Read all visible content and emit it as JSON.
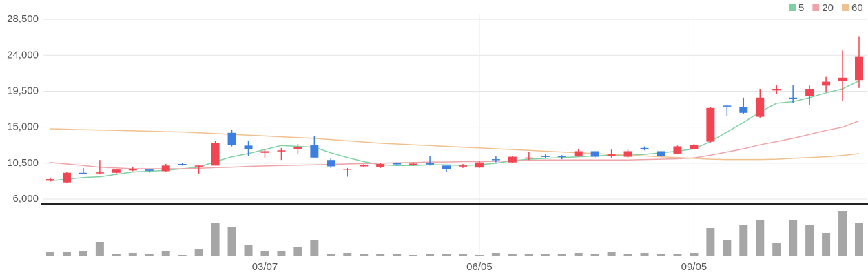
{
  "chart_data": {
    "type": "candlestick",
    "categories": [
      null,
      null,
      null,
      null,
      null,
      null,
      null,
      null,
      null,
      null,
      null,
      null,
      null,
      "03/07",
      null,
      null,
      null,
      null,
      null,
      null,
      null,
      null,
      null,
      null,
      null,
      null,
      "06/05",
      null,
      null,
      null,
      null,
      null,
      null,
      null,
      null,
      null,
      null,
      null,
      null,
      "09/05",
      null,
      null,
      null,
      null,
      null,
      null,
      null,
      null,
      null,
      null
    ],
    "open": [
      8300,
      8100,
      9300,
      9250,
      9300,
      9600,
      9700,
      9500,
      10400,
      10100,
      10200,
      14300,
      12700,
      11800,
      12000,
      12300,
      12800,
      10900,
      9700,
      10100,
      10000,
      10500,
      10300,
      10500,
      10200,
      10100,
      9950,
      11000,
      10600,
      11100,
      11400,
      11400,
      11400,
      12000,
      11400,
      11300,
      12400,
      12000,
      11700,
      12300,
      13200,
      17700,
      17500,
      16300,
      19600,
      18700,
      18900,
      20200,
      20800,
      20900
    ],
    "high": [
      8700,
      9400,
      9900,
      10900,
      9750,
      10000,
      9800,
      10400,
      10500,
      10300,
      13300,
      14700,
      13300,
      12300,
      12400,
      12900,
      13900,
      11100,
      9900,
      10400,
      10500,
      10600,
      10600,
      11400,
      10200,
      10400,
      10800,
      11400,
      11400,
      11900,
      11600,
      11500,
      12300,
      12000,
      12200,
      12200,
      12600,
      12000,
      12700,
      12900,
      17500,
      17800,
      18700,
      19800,
      20300,
      20300,
      20200,
      21300,
      24600,
      26400
    ],
    "low": [
      8200,
      8000,
      9100,
      9100,
      9200,
      9500,
      9300,
      9400,
      10200,
      9200,
      10200,
      12600,
      11400,
      11200,
      10900,
      11700,
      11200,
      9900,
      8800,
      10000,
      9900,
      10200,
      10200,
      10200,
      9400,
      9900,
      9900,
      10600,
      10500,
      10900,
      11100,
      11000,
      11300,
      11200,
      11200,
      11100,
      12100,
      11300,
      11600,
      12200,
      13100,
      16400,
      16700,
      16200,
      19200,
      18000,
      17800,
      19400,
      18300,
      19900
    ],
    "close": [
      8500,
      9300,
      9250,
      9350,
      9700,
      9800,
      9550,
      10200,
      10300,
      10200,
      13000,
      12800,
      12300,
      12000,
      12100,
      12500,
      11200,
      10100,
      9800,
      10300,
      10400,
      10350,
      10450,
      10350,
      9800,
      10200,
      10600,
      10900,
      11300,
      11200,
      11300,
      11300,
      12000,
      11300,
      11600,
      12000,
      12300,
      11400,
      12600,
      12800,
      17400,
      17600,
      16800,
      18700,
      19800,
      18600,
      19800,
      20700,
      21200,
      23800
    ],
    "volume": [
      5,
      5,
      6,
      19,
      3,
      4,
      3,
      6,
      1,
      9,
      48,
      41,
      15,
      6,
      6,
      12,
      22,
      3,
      4,
      2,
      3,
      2,
      1,
      3,
      2,
      2,
      1,
      4,
      3,
      3,
      2,
      2,
      4,
      3,
      5,
      3,
      4,
      3,
      3,
      4,
      40,
      22,
      45,
      52,
      18,
      51,
      45,
      33,
      65,
      48
    ],
    "series": [
      {
        "name": "5",
        "color": "#7fd1a4",
        "values": [
          8300,
          8500,
          8700,
          8800,
          9100,
          9400,
          9500,
          9600,
          9800,
          10000,
          10700,
          11300,
          11700,
          12200,
          12700,
          12600,
          12500,
          11800,
          11200,
          10700,
          10300,
          10200,
          10200,
          10300,
          10300,
          10200,
          10300,
          10500,
          10800,
          11000,
          11100,
          11200,
          11300,
          11400,
          11500,
          11500,
          11600,
          11800,
          12000,
          12300,
          13200,
          14400,
          15600,
          16900,
          18000,
          18200,
          18700,
          19300,
          19800,
          20800
        ]
      },
      {
        "name": "20",
        "color": "#eea4a8",
        "values": [
          10600,
          10400,
          10200,
          10000,
          9900,
          9800,
          9800,
          9800,
          9800,
          9850,
          9950,
          10000,
          10100,
          10150,
          10200,
          10250,
          10300,
          10350,
          10400,
          10450,
          10500,
          10550,
          10600,
          10650,
          10650,
          10700,
          10700,
          10750,
          10800,
          10850,
          10900,
          10900,
          10900,
          10900,
          10900,
          10900,
          10950,
          11000,
          11050,
          11150,
          11500,
          11900,
          12300,
          12800,
          13200,
          13600,
          14100,
          14600,
          15000,
          15800
        ]
      },
      {
        "name": "60",
        "color": "#f0c08e",
        "values": [
          14800,
          14750,
          14700,
          14650,
          14600,
          14550,
          14500,
          14450,
          14400,
          14300,
          14200,
          14100,
          14000,
          13900,
          13800,
          13700,
          13600,
          13450,
          13300,
          13150,
          13000,
          12900,
          12800,
          12700,
          12600,
          12500,
          12400,
          12300,
          12200,
          12100,
          12000,
          11900,
          11800,
          11700,
          11600,
          11500,
          11400,
          11300,
          11200,
          11100,
          11000,
          10950,
          10950,
          10950,
          11000,
          11100,
          11200,
          11300,
          11450,
          11700
        ]
      }
    ],
    "up_color": "#f24553",
    "down_color": "#3c7fe0",
    "volume_color": "#a6a6a6",
    "ylim": [
      5400,
      29200
    ],
    "yticks": [
      {
        "value": 6000,
        "label": "6,000"
      },
      {
        "value": 10500,
        "label": "10,500"
      },
      {
        "value": 15000,
        "label": "15,000"
      },
      {
        "value": 19500,
        "label": "19,500"
      },
      {
        "value": 24000,
        "label": "24,000"
      },
      {
        "value": 28500,
        "label": "28,500"
      }
    ],
    "volume_ylim": [
      0,
      70
    ],
    "grid": true,
    "legend": "top-right"
  }
}
